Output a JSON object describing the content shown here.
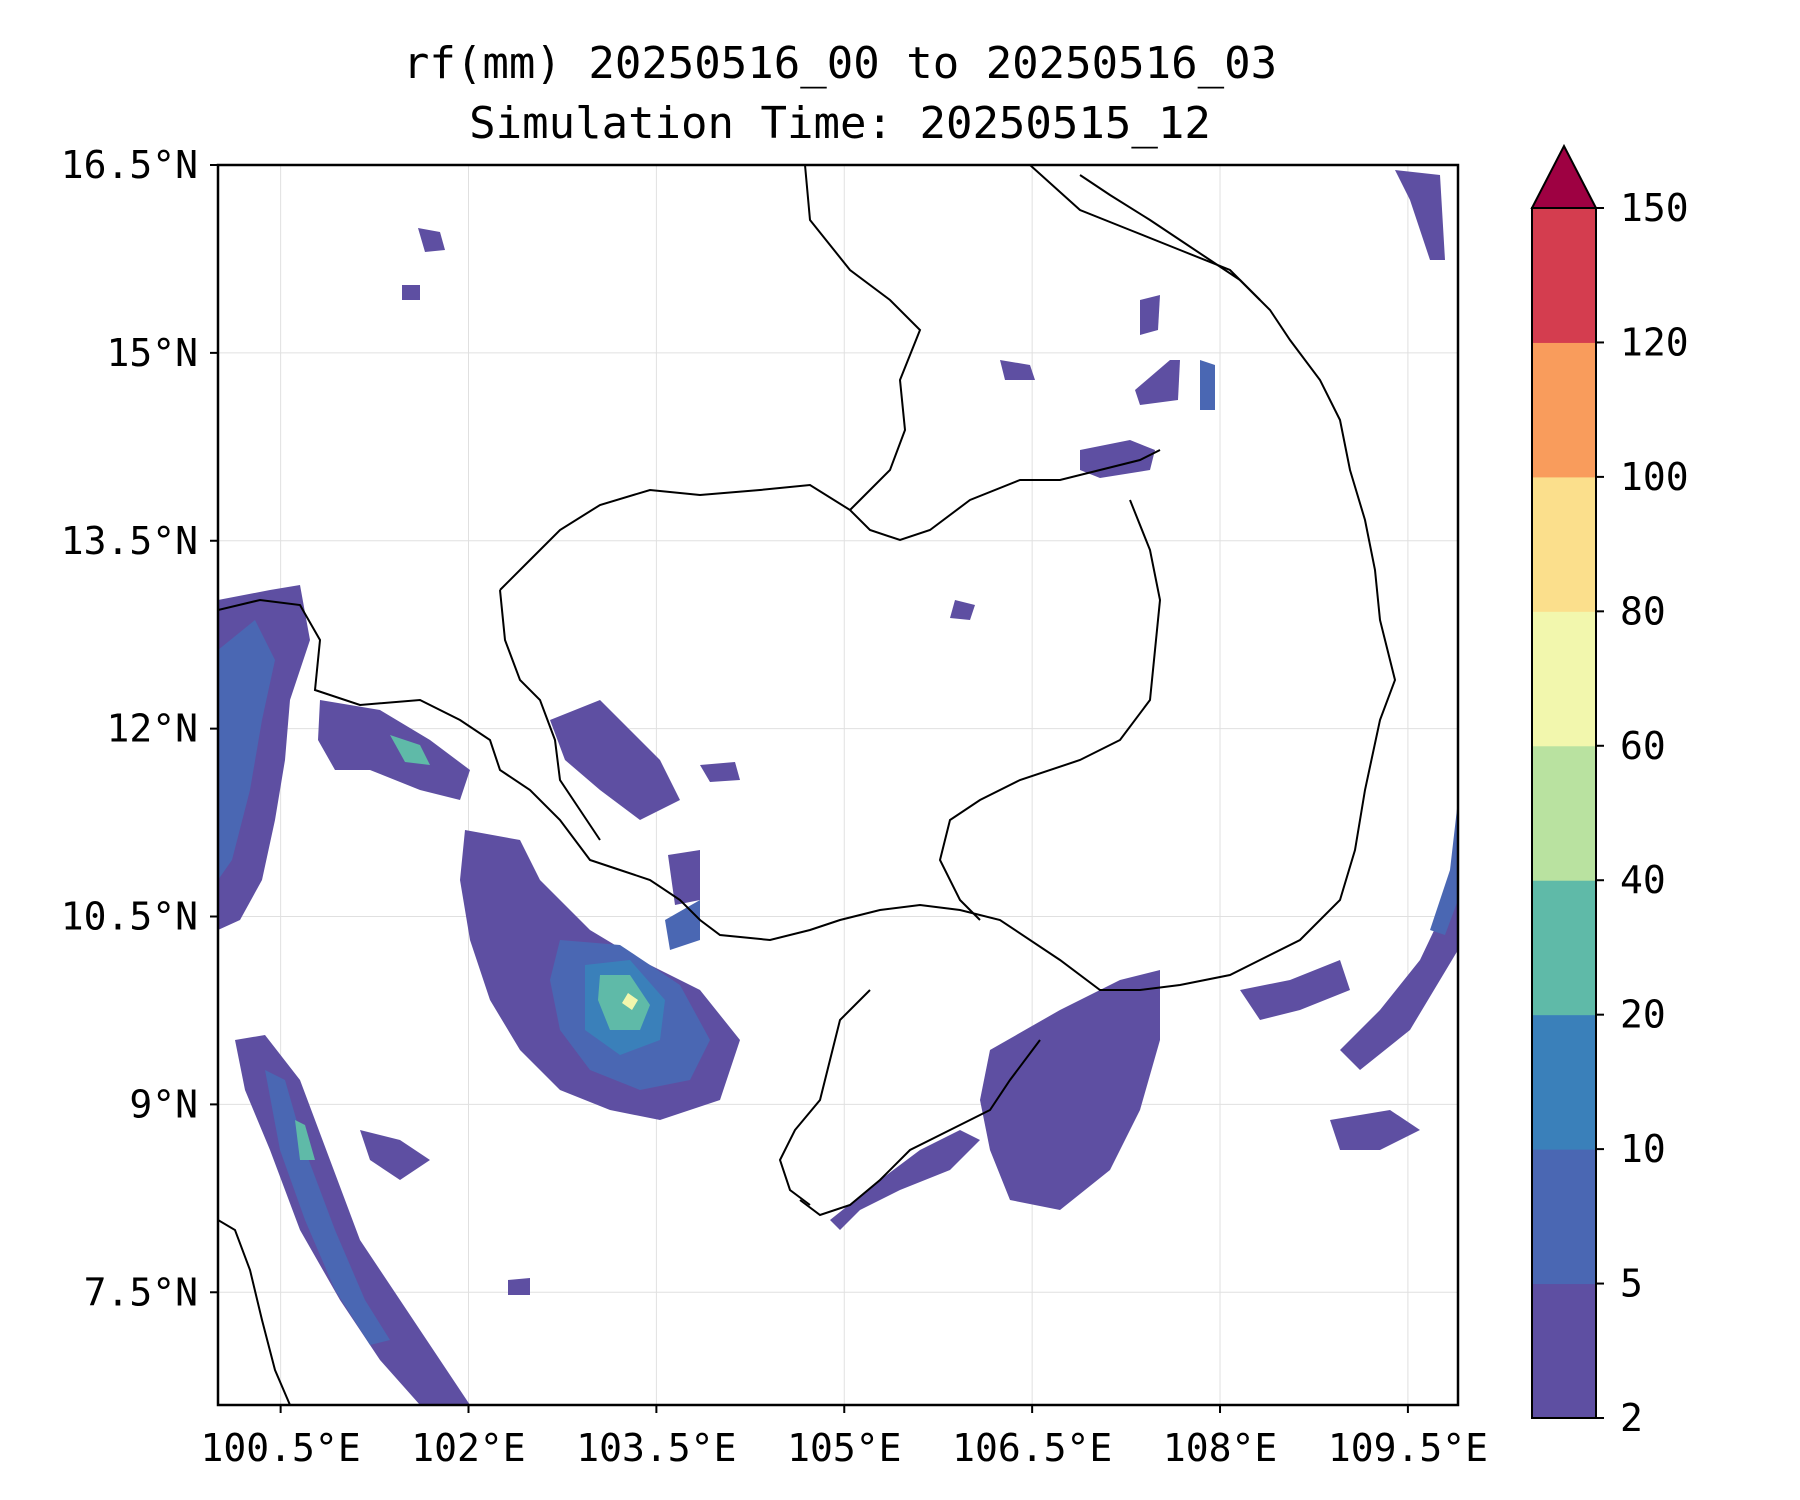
{
  "title": {
    "line1": "rf(mm) 20250516_00 to 20250516_03",
    "line2": "Simulation Time: 20250515_12"
  },
  "map": {
    "lon_range": [
      100.0,
      109.9
    ],
    "lat_range": [
      6.6,
      16.5
    ],
    "x_ticks": [
      "100.5°E",
      "102°E",
      "103.5°E",
      "105°E",
      "106.5°E",
      "108°E",
      "109.5°E"
    ],
    "y_ticks": [
      "16.5°N",
      "15°N",
      "13.5°N",
      "12°N",
      "10.5°N",
      "9°N",
      "7.5°N"
    ],
    "grid": true
  },
  "colorbar": {
    "levels": [
      "2",
      "5",
      "10",
      "20",
      "40",
      "60",
      "80",
      "100",
      "120",
      "150"
    ],
    "colors": [
      "#5e4fa2",
      "#4a67b3",
      "#3a80ba",
      "#5fbaa8",
      "#b9e2a0",
      "#f2f7ad",
      "#fbdf8c",
      "#f99c5c",
      "#d43d4f",
      "#9e0142"
    ],
    "extend": "max"
  }
}
